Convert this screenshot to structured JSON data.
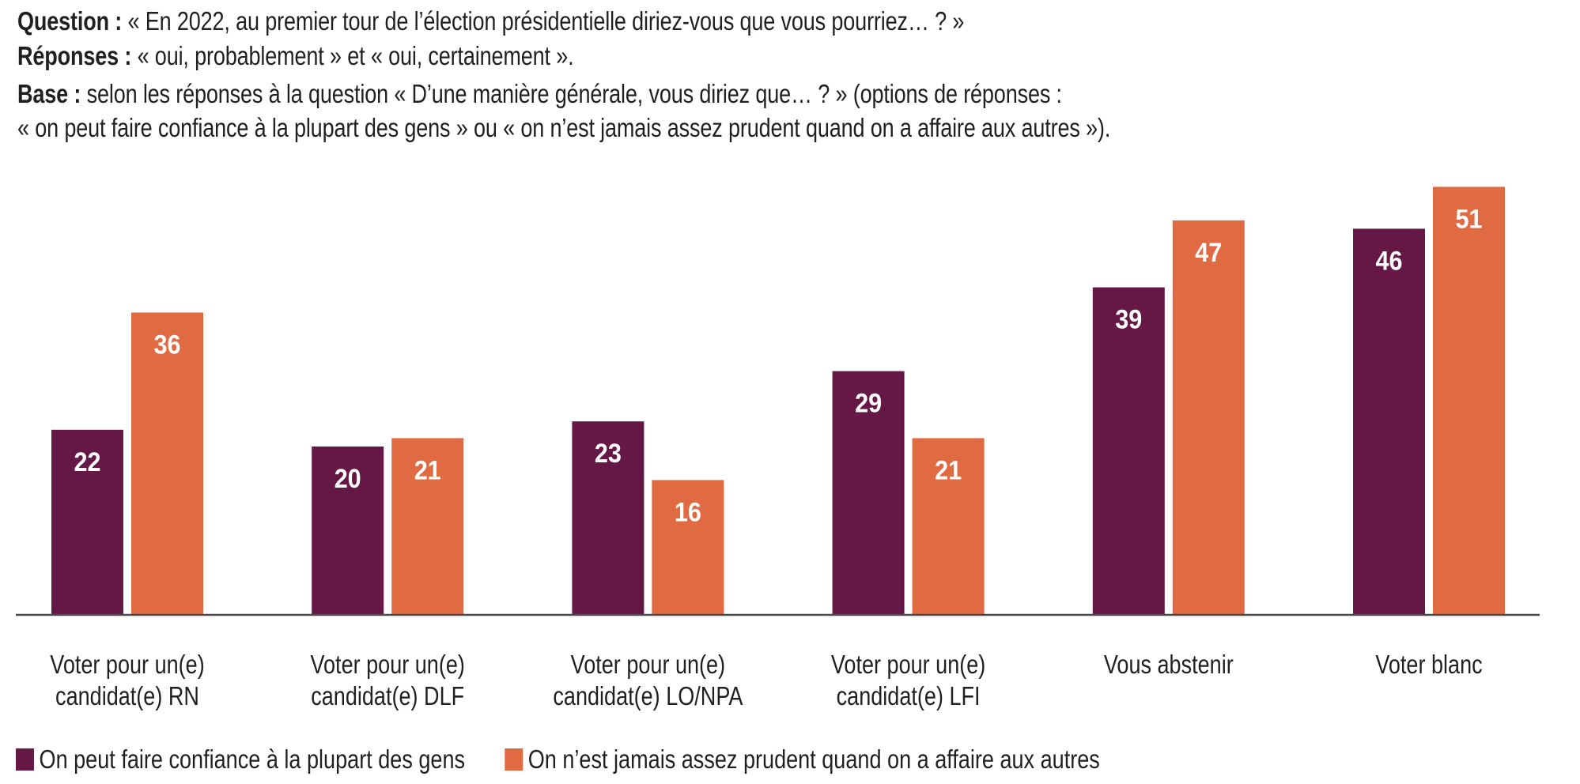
{
  "header": {
    "question_label": "Question :",
    "question_text": " « En 2022, au premier tour de l’élection présidentielle diriez-vous que vous pourriez… ? »",
    "responses_label": "Réponses :",
    "responses_text": " « oui, probablement » et « oui, certainement ».",
    "base_label": "Base :",
    "base_text_line1": " selon les réponses à la question « D’une manière générale, vous diriez que… ? » (options de réponses :",
    "base_text_line2": "« on peut faire confiance à la plupart des gens » ou « on n’est jamais assez prudent quand on a affaire aux autres »)."
  },
  "chart_data": {
    "type": "bar",
    "title": "",
    "xlabel": "",
    "ylabel": "",
    "ylim": [
      0,
      55
    ],
    "grid": false,
    "legend_position": "bottom-left",
    "categories": [
      [
        "Voter pour un(e)",
        "candidat(e) RN"
      ],
      [
        "Voter pour un(e)",
        "candidat(e) DLF"
      ],
      [
        "Voter pour un(e)",
        "candidat(e) LO/NPA"
      ],
      [
        "Voter pour un(e)",
        "candidat(e) LFI"
      ],
      [
        "Vous abstenir"
      ],
      [
        "Voter blanc"
      ]
    ],
    "series": [
      {
        "name": "On peut faire confiance à la plupart des gens",
        "color": "#651745",
        "values": [
          22,
          20,
          23,
          29,
          39,
          46
        ]
      },
      {
        "name": "On n’est jamais assez prudent quand on a affaire aux autres",
        "color": "#E06B42",
        "values": [
          36,
          21,
          16,
          21,
          47,
          51
        ]
      }
    ]
  }
}
